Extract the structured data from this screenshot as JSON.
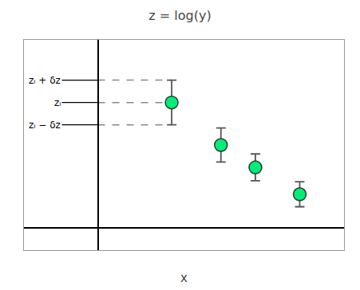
{
  "chart_data": {
    "type": "scatter",
    "title": "z = log(y)",
    "xlabel": "x",
    "x": [
      1.5,
      2.5,
      3.2,
      4.1
    ],
    "series": [
      {
        "values": [
          2.8,
          1.85,
          1.35,
          0.75
        ],
        "error": [
          0.5,
          0.38,
          0.3,
          0.28
        ],
        "color": "#00EE77"
      }
    ],
    "xlim": [
      -1.5,
      5.0
    ],
    "ylim": [
      -0.5,
      4.2
    ],
    "tick_labels": false,
    "grid": false,
    "reference_lines": [
      3.3,
      2.8,
      2.3
    ],
    "annotations": [
      {
        "text": "zᵢ + δz",
        "y": 3.3
      },
      {
        "text": "zᵢ",
        "y": 2.8
      },
      {
        "text": "zᵢ − δz",
        "y": 2.3
      }
    ]
  }
}
